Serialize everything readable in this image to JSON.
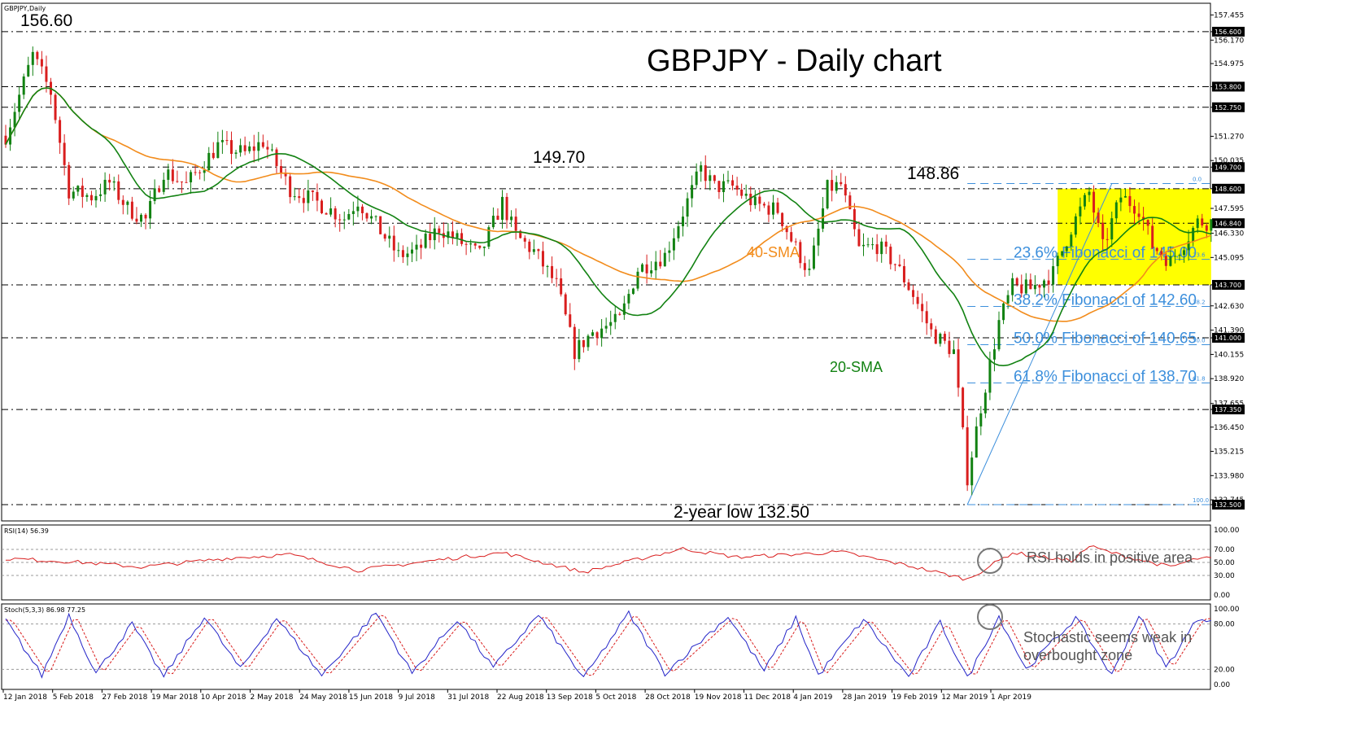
{
  "chart_data": [
    {
      "type": "candlestick",
      "symbol_label": "GBPJPY,Daily",
      "title": "GBPJPY - Daily chart",
      "ylim": [
        132.5,
        157.8
      ],
      "y_ticks": [
        "157.455",
        "156.600",
        "156.170",
        "154.975",
        "153.800",
        "152.750",
        "151.270",
        "150.035",
        "149.700",
        "148.600",
        "147.595",
        "146.840",
        "146.330",
        "145.095",
        "143.700",
        "142.630",
        "141.390",
        "141.000",
        "140.155",
        "138.920",
        "137.655",
        "137.350",
        "136.450",
        "135.215",
        "133.980",
        "132.745",
        "132.500"
      ],
      "highlighted_levels": [
        {
          "value": 156.6,
          "label": "156.600"
        },
        {
          "value": 153.8,
          "label": "153.800"
        },
        {
          "value": 152.75,
          "label": "152.750"
        },
        {
          "value": 149.7,
          "label": "149.700"
        },
        {
          "value": 148.6,
          "label": "148.600"
        },
        {
          "value": 146.84,
          "label": "146.840"
        },
        {
          "value": 143.7,
          "label": "143.700"
        },
        {
          "value": 141.0,
          "label": "141.000"
        },
        {
          "value": 137.35,
          "label": "137.350"
        },
        {
          "value": 132.5,
          "label": "132.500"
        }
      ],
      "x_labels": [
        "12 Jan 2018",
        "5 Feb 2018",
        "27 Feb 2018",
        "19 Mar 2018",
        "10 Apr 2018",
        "2 May 2018",
        "24 May 2018",
        "15 Jun 2018",
        "9 Jul 2018",
        "31 Jul 2018",
        "22 Aug 2018",
        "13 Sep 2018",
        "5 Oct 2018",
        "28 Oct 2018",
        "19 Nov 2018",
        "11 Dec 2018",
        "4 Jan 2019",
        "28 Jan 2019",
        "19 Feb 2019",
        "12 Mar 2019",
        "1 Apr 2019"
      ],
      "price_path": [
        [
          0,
          151.3
        ],
        [
          6,
          155.4
        ],
        [
          10,
          153.5
        ],
        [
          14,
          148.5
        ],
        [
          19,
          148.2
        ],
        [
          23,
          148.9
        ],
        [
          27,
          147.6
        ],
        [
          31,
          147.0
        ],
        [
          35,
          149.5
        ],
        [
          40,
          148.8
        ],
        [
          47,
          150.8
        ],
        [
          53,
          150.4
        ],
        [
          57,
          151.0
        ],
        [
          63,
          148.6
        ],
        [
          69,
          147.9
        ],
        [
          75,
          147.1
        ],
        [
          78,
          148.0
        ],
        [
          87,
          145.2
        ],
        [
          91,
          145.4
        ],
        [
          96,
          146.6
        ],
        [
          100,
          146.0
        ],
        [
          105,
          145.2
        ],
        [
          110,
          147.9
        ],
        [
          113,
          146.2
        ],
        [
          117,
          145.4
        ],
        [
          122,
          143.7
        ],
        [
          126,
          140.3
        ],
        [
          130,
          141.3
        ],
        [
          136,
          141.9
        ],
        [
          140,
          144.5
        ],
        [
          146,
          145.2
        ],
        [
          150,
          147.4
        ],
        [
          154,
          149.6
        ],
        [
          157,
          148.7
        ],
        [
          161,
          148.7
        ],
        [
          166,
          147.8
        ],
        [
          171,
          147.5
        ],
        [
          174,
          146.0
        ],
        [
          178,
          144.3
        ],
        [
          182,
          148.6
        ],
        [
          185,
          148.8
        ],
        [
          189,
          145.5
        ],
        [
          193,
          145.7
        ],
        [
          197,
          144.8
        ],
        [
          201,
          143.2
        ],
        [
          205,
          141.3
        ],
        [
          210,
          140.3
        ],
        [
          213,
          133.9
        ],
        [
          216,
          137.5
        ],
        [
          220,
          141.8
        ],
        [
          223,
          143.6
        ],
        [
          227,
          143.5
        ],
        [
          232,
          144.3
        ],
        [
          236,
          146.6
        ],
        [
          240,
          148.4
        ],
        [
          243,
          145.6
        ],
        [
          247,
          148.2
        ],
        [
          251,
          147.6
        ],
        [
          254,
          145.7
        ],
        [
          258,
          144.9
        ],
        [
          262,
          146.2
        ],
        [
          264,
          146.9
        ]
      ],
      "series": [
        {
          "name": "20-SMA",
          "color": "#128212"
        },
        {
          "name": "40-SMA",
          "color": "#f28c1c"
        }
      ],
      "annotations": [
        "156.60",
        "149.70",
        "148.86",
        "2-year low 132.50"
      ],
      "fibonacci": [
        {
          "ratio": "0.0",
          "value": 148.86
        },
        {
          "ratio": "23.6",
          "value": 145.0,
          "label": "23.6% Fibonacci of 145.00"
        },
        {
          "ratio": "38.2",
          "value": 142.6,
          "label": "38.2% Fibonacci of 142.60"
        },
        {
          "ratio": "50.0",
          "value": 140.65,
          "label": "50.0% Fibonacci of 140.65"
        },
        {
          "ratio": "61.8",
          "value": 138.7,
          "label": "61.8% Fibonacci of 138.70"
        },
        {
          "ratio": "100.0",
          "value": 132.5
        }
      ],
      "highlight_box": {
        "x_from": 233,
        "x_to": 267,
        "y_from": 143.7,
        "y_to": 148.6,
        "color": "#ffff00"
      }
    },
    {
      "type": "line",
      "label": "RSI(14) 56.39",
      "ylim": [
        0,
        100
      ],
      "y_ticks": [
        "100.00",
        "70.00",
        "50.00",
        "30.00",
        "0.00"
      ],
      "y_tick_values": [
        100,
        70,
        50,
        30,
        0
      ],
      "series": [
        {
          "name": "RSI(14)",
          "color": "#d91e1e",
          "path": [
            [
              0,
              56
            ],
            [
              15,
              51
            ],
            [
              30,
              43
            ],
            [
              50,
              57
            ],
            [
              63,
              62
            ],
            [
              78,
              38
            ],
            [
              96,
              54
            ],
            [
              110,
              65
            ],
            [
              128,
              35
            ],
            [
              150,
              71
            ],
            [
              162,
              58
            ],
            [
              185,
              66
            ],
            [
              200,
              45
            ],
            [
              213,
              24
            ],
            [
              223,
              65
            ],
            [
              236,
              52
            ],
            [
              240,
              75
            ],
            [
              247,
              61
            ],
            [
              258,
              43
            ],
            [
              264,
              56
            ]
          ]
        }
      ],
      "note": "RSI holds in positive area"
    },
    {
      "type": "line",
      "label": "Stoch(5,3,3) 86.98 77.25",
      "ylim": [
        0,
        100
      ],
      "y_ticks": [
        "100.00",
        "80.00",
        "20.00",
        "0.00"
      ],
      "y_tick_values": [
        100,
        80,
        20,
        0
      ],
      "series": [
        {
          "name": "%K",
          "color": "#2323c8"
        },
        {
          "name": "%D",
          "color": "#d91e1e"
        }
      ],
      "oscillation_lows": [
        [
          8,
          12
        ],
        [
          20,
          15
        ],
        [
          35,
          10
        ],
        [
          52,
          20
        ],
        [
          70,
          12
        ],
        [
          90,
          15
        ],
        [
          108,
          22
        ],
        [
          128,
          8
        ],
        [
          146,
          15
        ],
        [
          168,
          18
        ],
        [
          180,
          12
        ],
        [
          200,
          10
        ],
        [
          213,
          8
        ],
        [
          226,
          20
        ],
        [
          245,
          12
        ],
        [
          257,
          22
        ]
      ],
      "oscillation_highs": [
        [
          0,
          85
        ],
        [
          14,
          92
        ],
        [
          28,
          80
        ],
        [
          44,
          90
        ],
        [
          60,
          88
        ],
        [
          82,
          95
        ],
        [
          100,
          86
        ],
        [
          118,
          92
        ],
        [
          138,
          94
        ],
        [
          160,
          90
        ],
        [
          175,
          88
        ],
        [
          190,
          86
        ],
        [
          207,
          82
        ],
        [
          220,
          90
        ],
        [
          237,
          88
        ],
        [
          251,
          92
        ],
        [
          264,
          87
        ]
      ],
      "note": "Stochastic seems weak in overbought zone"
    }
  ],
  "labels": {
    "sma20": "20-SMA",
    "sma40": "40-SMA",
    "rsi_note": "RSI holds in positive area",
    "stoch_note_1": "Stochastic seems weak in",
    "stoch_note_2": "overbought zone"
  },
  "colors": {
    "bull": "#128212",
    "bear": "#d91e1e",
    "fib": "#3c8fdc",
    "tag_bg": "#000000",
    "highlight": "#ffff00"
  }
}
